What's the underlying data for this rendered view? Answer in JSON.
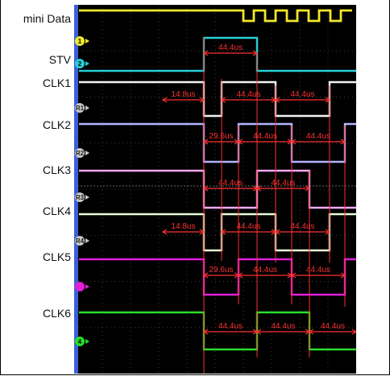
{
  "signals": [
    "mini Data",
    "STV",
    "CLK1",
    "CLK2",
    "CLK3",
    "CLK4",
    "CLK5",
    "CLK6"
  ],
  "channel_markers": [
    "1",
    "2",
    "R1",
    "R2",
    "R3",
    "R4",
    "",
    ""
  ],
  "channel_markers_bottom": [
    "4"
  ],
  "measurements": {
    "clk_period": "44.4us",
    "offset_1": "14.8us",
    "offset_2": "29.6us"
  },
  "colors": {
    "background": "#000000",
    "grid": "#3a3a3a",
    "mini_data": "#f2e82a",
    "stv": "#26d0d6",
    "clk1": "#f4f4f4",
    "clk2": "#b4b4ff",
    "clk3": "#f2a8f2",
    "clk4": "#e8ffd6",
    "clk5": "#e020d8",
    "clk6": "#28e028",
    "measure": "#ff3030",
    "marker_y": "#f2e82a",
    "marker_c": "#26d0d6",
    "marker_r": "#c8c8c8",
    "marker_m": "#e020d8",
    "marker_g": "#28e028"
  }
}
